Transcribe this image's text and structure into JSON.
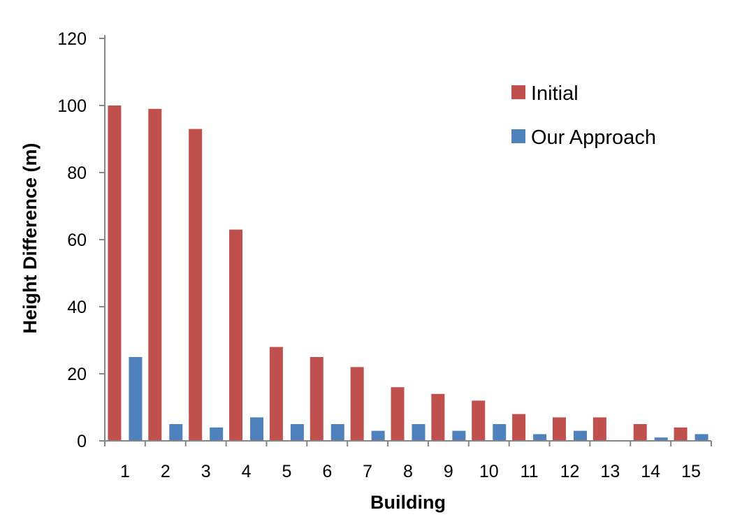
{
  "chart_data": {
    "type": "bar",
    "title": "",
    "xlabel": "Building",
    "ylabel": "Height Difference (m)",
    "ylim": [
      0,
      120
    ],
    "yticks": [
      0,
      20,
      40,
      60,
      80,
      100,
      120
    ],
    "grid": false,
    "legend_position": "top-right",
    "categories": [
      "1",
      "2",
      "3",
      "4",
      "5",
      "6",
      "7",
      "8",
      "9",
      "10",
      "11",
      "12",
      "13",
      "14",
      "15"
    ],
    "series": [
      {
        "name": "Initial",
        "color": "#c0504d",
        "values": [
          100,
          99,
          93,
          63,
          28,
          25,
          22,
          16,
          14,
          12,
          8,
          7,
          7,
          5,
          4
        ]
      },
      {
        "name": "Our Approach",
        "color": "#4f81bd",
        "values": [
          25,
          5,
          4,
          7,
          5,
          5,
          3,
          5,
          3,
          5,
          2,
          3,
          0,
          1,
          2
        ]
      }
    ]
  }
}
